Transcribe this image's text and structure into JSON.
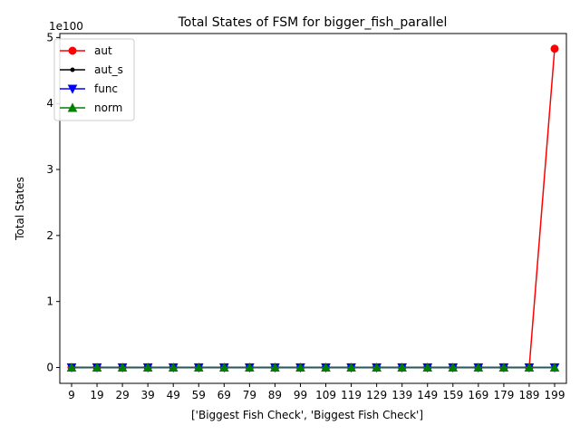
{
  "chart_data": {
    "type": "line",
    "title": "Total States of FSM for bigger_fish_parallel",
    "xlabel": "['Biggest Fish Check', 'Biggest Fish Check']",
    "ylabel": "Total States",
    "y_offset_label": "1e100",
    "x": [
      9,
      19,
      29,
      39,
      49,
      59,
      69,
      79,
      89,
      99,
      109,
      119,
      129,
      139,
      149,
      159,
      169,
      179,
      189,
      199
    ],
    "yticks": [
      0,
      1,
      2,
      3,
      4,
      5
    ],
    "ylim": [
      -0.24,
      5.06
    ],
    "y_scale_note": "values in units of 1e100",
    "grid": false,
    "legend_position": "top-left",
    "series": [
      {
        "name": "aut",
        "color": "#ff0000",
        "marker": "circle",
        "values": [
          0,
          0,
          0,
          0,
          0,
          0,
          0,
          0,
          0,
          0,
          0,
          0,
          0,
          0,
          0,
          0,
          0,
          0,
          0,
          4.83
        ]
      },
      {
        "name": "aut_s",
        "color": "#000000",
        "marker": "dot",
        "values": [
          0,
          0,
          0,
          0,
          0,
          0,
          0,
          0,
          0,
          0,
          0,
          0,
          0,
          0,
          0,
          0,
          0,
          0,
          0,
          0
        ]
      },
      {
        "name": "func",
        "color": "#0000ff",
        "marker": "triangle-down",
        "values": [
          0,
          0,
          0,
          0,
          0,
          0,
          0,
          0,
          0,
          0,
          0,
          0,
          0,
          0,
          0,
          0,
          0,
          0,
          0,
          0
        ]
      },
      {
        "name": "norm",
        "color": "#008000",
        "marker": "triangle-up",
        "values": [
          0,
          0,
          0,
          0,
          0,
          0,
          0,
          0,
          0,
          0,
          0,
          0,
          0,
          0,
          0,
          0,
          0,
          0,
          0,
          0
        ]
      }
    ]
  }
}
